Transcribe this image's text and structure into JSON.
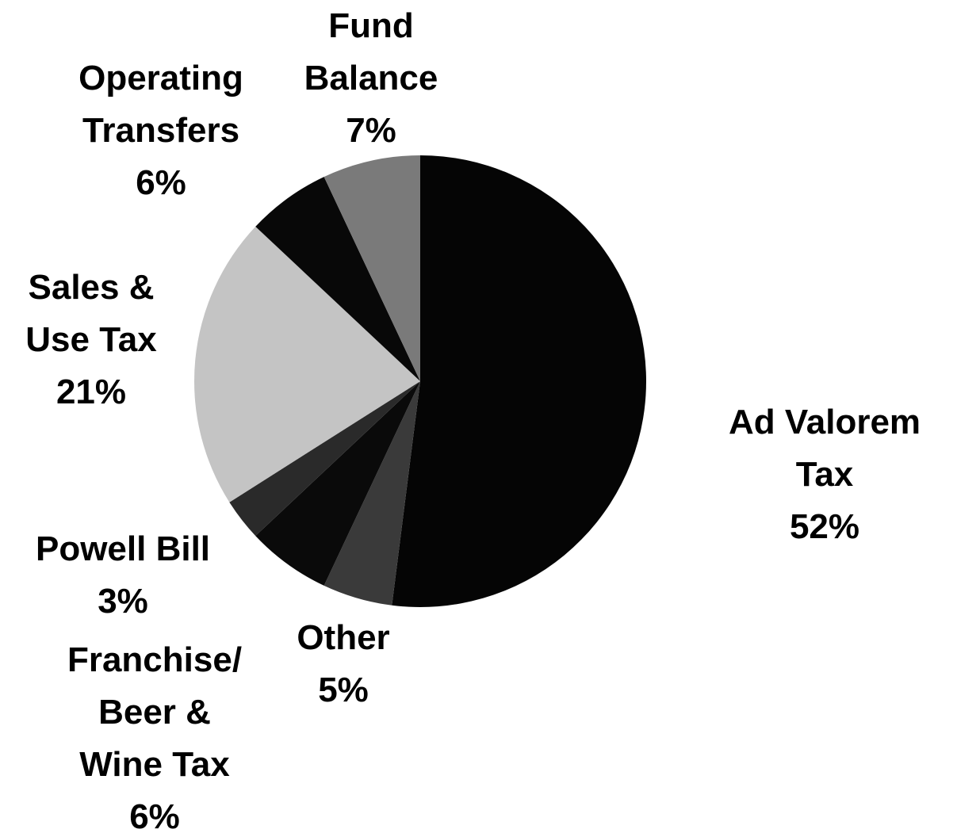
{
  "chart_data": {
    "type": "pie",
    "categories": [
      "Ad Valorem\nTax",
      "Other",
      "Franchise/\nBeer &\nWine Tax",
      "Powell Bill",
      "Sales &\nUse Tax",
      "Operating\nTransfers",
      "Fund\nBalance"
    ],
    "values": [
      52,
      5,
      6,
      3,
      21,
      6,
      7
    ],
    "value_labels": [
      "52%",
      "5%",
      "6%",
      "3%",
      "21%",
      "6%",
      "7%"
    ],
    "colors": [
      "#050505",
      "#3a3a3a",
      "#0a0a0a",
      "#2a2a2a",
      "#c4c4c4",
      "#080808",
      "#7a7a7a"
    ]
  }
}
